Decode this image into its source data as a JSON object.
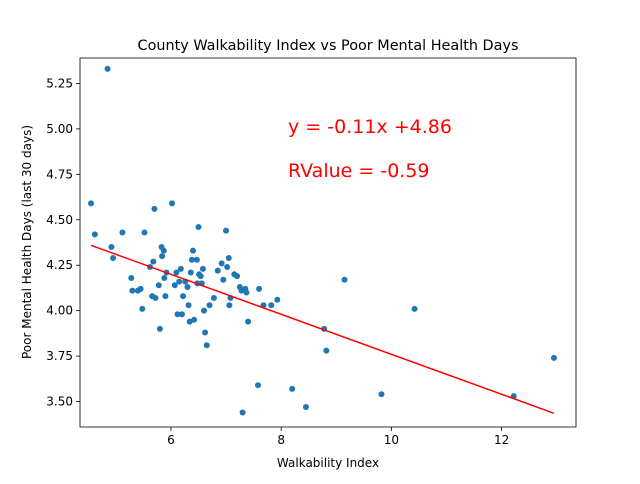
{
  "chart_data": {
    "type": "scatter",
    "title": "County Walkability Index vs Poor Mental Health Days",
    "xlabel": "Walkability Index",
    "ylabel": "Poor Mental Health Days (last 30 days)",
    "xlim": [
      4.35,
      13.35
    ],
    "ylim": [
      3.36,
      5.39
    ],
    "xticks": [
      6,
      8,
      10,
      12
    ],
    "xtick_labels": [
      "6",
      "8",
      "10",
      "12"
    ],
    "yticks": [
      3.5,
      3.75,
      4.0,
      4.25,
      4.5,
      4.75,
      5.0,
      5.25
    ],
    "ytick_labels": [
      "3.50",
      "3.75",
      "4.00",
      "4.25",
      "4.50",
      "4.75",
      "5.00",
      "5.25"
    ],
    "grid": false,
    "point_color": "#1f77b4",
    "regression": {
      "slope": -0.11,
      "intercept": 4.86,
      "x_range": [
        4.55,
        12.95
      ],
      "color": "#ff0000",
      "equation_label": "y = -0.11x +4.86",
      "rvalue_label": "RValue = -0.59"
    },
    "points": [
      [
        4.55,
        4.59
      ],
      [
        4.62,
        4.42
      ],
      [
        4.85,
        5.33
      ],
      [
        4.92,
        4.35
      ],
      [
        4.95,
        4.29
      ],
      [
        5.12,
        4.43
      ],
      [
        5.28,
        4.18
      ],
      [
        5.3,
        4.11
      ],
      [
        5.4,
        4.11
      ],
      [
        5.45,
        4.12
      ],
      [
        5.48,
        4.01
      ],
      [
        5.52,
        4.43
      ],
      [
        5.62,
        4.24
      ],
      [
        5.66,
        4.08
      ],
      [
        5.68,
        4.27
      ],
      [
        5.7,
        4.56
      ],
      [
        5.72,
        4.07
      ],
      [
        5.78,
        4.14
      ],
      [
        5.8,
        3.9
      ],
      [
        5.83,
        4.35
      ],
      [
        5.84,
        4.3
      ],
      [
        5.87,
        4.33
      ],
      [
        5.88,
        4.18
      ],
      [
        5.9,
        4.08
      ],
      [
        5.92,
        4.21
      ],
      [
        6.02,
        4.59
      ],
      [
        6.07,
        4.14
      ],
      [
        6.1,
        4.21
      ],
      [
        6.12,
        3.98
      ],
      [
        6.15,
        4.16
      ],
      [
        6.18,
        4.23
      ],
      [
        6.2,
        3.98
      ],
      [
        6.22,
        4.08
      ],
      [
        6.26,
        4.16
      ],
      [
        6.3,
        4.13
      ],
      [
        6.32,
        4.03
      ],
      [
        6.34,
        3.94
      ],
      [
        6.36,
        4.21
      ],
      [
        6.38,
        4.28
      ],
      [
        6.4,
        4.33
      ],
      [
        6.42,
        3.95
      ],
      [
        6.47,
        4.28
      ],
      [
        6.48,
        4.15
      ],
      [
        6.5,
        4.46
      ],
      [
        6.51,
        4.2
      ],
      [
        6.54,
        4.19
      ],
      [
        6.56,
        4.15
      ],
      [
        6.58,
        4.23
      ],
      [
        6.6,
        4.0
      ],
      [
        6.62,
        3.88
      ],
      [
        6.65,
        3.81
      ],
      [
        6.7,
        4.03
      ],
      [
        6.78,
        4.07
      ],
      [
        6.85,
        4.22
      ],
      [
        6.92,
        4.26
      ],
      [
        6.95,
        4.17
      ],
      [
        7.0,
        4.44
      ],
      [
        7.02,
        4.24
      ],
      [
        7.05,
        4.29
      ],
      [
        7.06,
        4.03
      ],
      [
        7.08,
        4.07
      ],
      [
        7.15,
        4.2
      ],
      [
        7.2,
        4.19
      ],
      [
        7.25,
        4.13
      ],
      [
        7.28,
        4.11
      ],
      [
        7.3,
        3.44
      ],
      [
        7.35,
        4.12
      ],
      [
        7.37,
        4.1
      ],
      [
        7.4,
        3.94
      ],
      [
        7.58,
        3.59
      ],
      [
        7.6,
        4.12
      ],
      [
        7.68,
        4.03
      ],
      [
        7.82,
        4.03
      ],
      [
        7.93,
        4.06
      ],
      [
        8.2,
        3.57
      ],
      [
        8.45,
        3.47
      ],
      [
        8.78,
        3.9
      ],
      [
        8.82,
        3.78
      ],
      [
        9.15,
        4.17
      ],
      [
        9.82,
        3.54
      ],
      [
        10.42,
        4.01
      ],
      [
        12.22,
        3.53
      ],
      [
        12.95,
        3.74
      ]
    ]
  }
}
